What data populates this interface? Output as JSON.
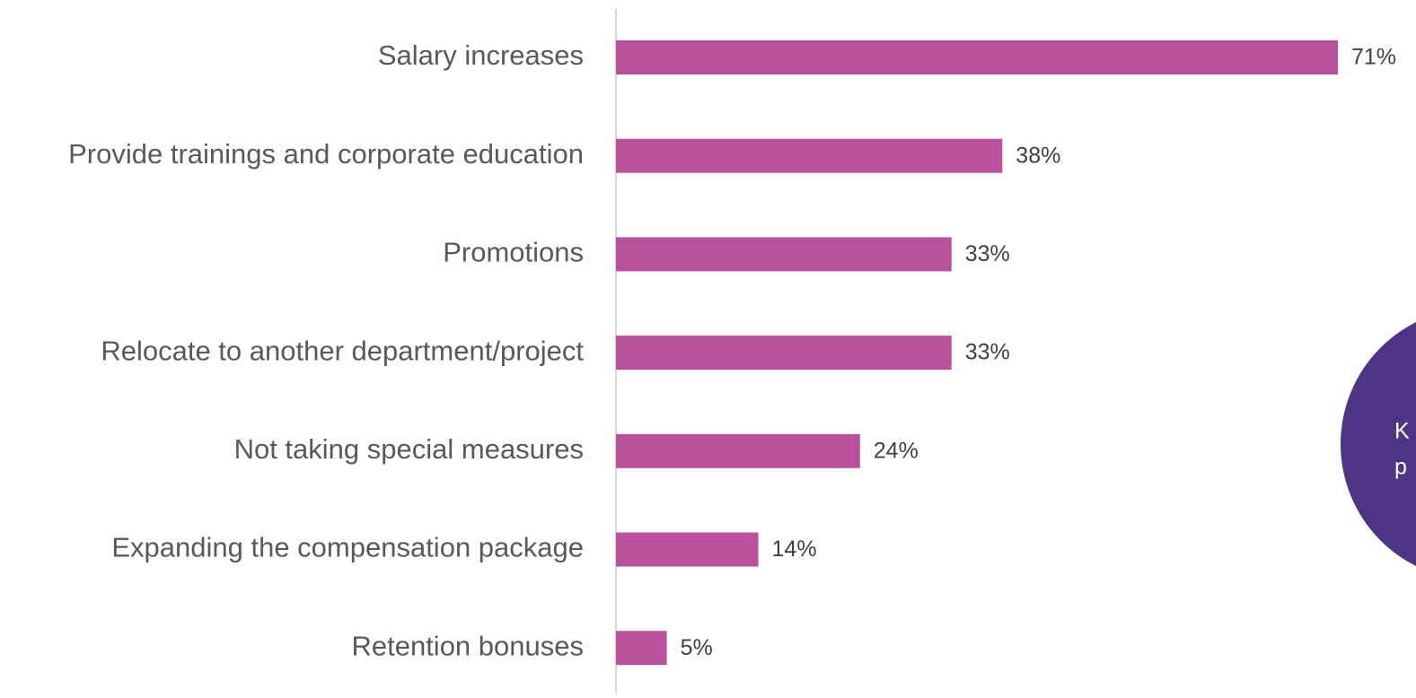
{
  "chart_data": {
    "type": "hbar",
    "categories": [
      "Salary increases",
      "Provide trainings and corporate education",
      "Promotions",
      "Relocate to another department/project",
      "Not taking special measures",
      "Expanding the compensation package",
      "Retention bonuses"
    ],
    "values": [
      71,
      38,
      33,
      33,
      24,
      14,
      5
    ],
    "value_labels": [
      "71%",
      "38%",
      "33%",
      "33%",
      "24%",
      "14%",
      "5%"
    ],
    "color": "#b9519f",
    "xlim": [
      0,
      71
    ],
    "annotations": [
      "K",
      "p"
    ]
  }
}
